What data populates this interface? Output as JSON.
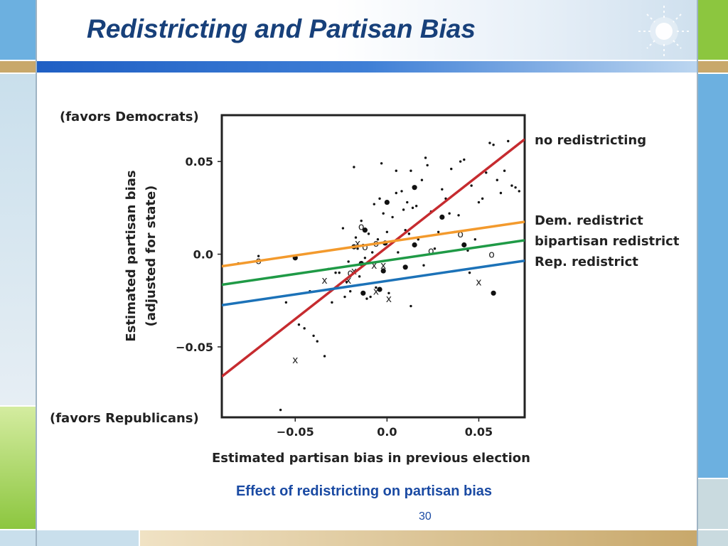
{
  "slide": {
    "title": "Redistricting and Partisan Bias",
    "caption": "Effect of redistricting on partisan bias",
    "page_number": "30",
    "colors": {
      "title": "#17407a",
      "top_bar": "#1f5fc4",
      "frame_blue": "#6cb0e0",
      "frame_green": "#8cc63f",
      "frame_tan": "#c8a86b"
    },
    "decoration_icon": "sparkle-icon"
  },
  "chart_data": {
    "type": "scatter",
    "title": "",
    "xlabel": "Estimated partisan bias in previous election",
    "ylabel": "Estimated partisan bias",
    "ylabel_sub": "(adjusted for state)",
    "top_annotation": "(favors Democrats)",
    "bottom_annotation": "(favors Republicans)",
    "xlim": [
      -0.09,
      0.075
    ],
    "ylim": [
      -0.088,
      0.075
    ],
    "x_ticks": [
      -0.05,
      0.0,
      0.05
    ],
    "x_tick_labels": [
      "−0.05",
      "0.0",
      "0.05"
    ],
    "y_ticks": [
      0.05,
      0.0,
      -0.05
    ],
    "y_tick_labels": [
      "0.05",
      "0.0",
      "−0.05"
    ],
    "grid": false,
    "lines": [
      {
        "name": "no redistricting",
        "color": "#c62b2f",
        "x": [
          -0.09,
          0.075
        ],
        "y": [
          -0.066,
          0.062
        ]
      },
      {
        "name": "Dem. redistrict",
        "color": "#f39a2d",
        "x": [
          -0.09,
          0.075
        ],
        "y": [
          -0.0065,
          0.0175
        ]
      },
      {
        "name": "bipartisan redistrict",
        "color": "#1f9a46",
        "x": [
          -0.09,
          0.075
        ],
        "y": [
          -0.0165,
          0.0075
        ]
      },
      {
        "name": "Rep. redistrict",
        "color": "#1c72b8",
        "x": [
          -0.09,
          0.075
        ],
        "y": [
          -0.0275,
          -0.0035
        ]
      }
    ],
    "points_small": [
      [
        -0.081,
        -0.005
      ],
      [
        -0.07,
        -0.001
      ],
      [
        -0.055,
        -0.026
      ],
      [
        -0.048,
        -0.038
      ],
      [
        -0.045,
        -0.04
      ],
      [
        -0.04,
        -0.044
      ],
      [
        -0.038,
        -0.047
      ],
      [
        -0.03,
        -0.026
      ],
      [
        -0.026,
        -0.01
      ],
      [
        -0.024,
        0.014
      ],
      [
        -0.022,
        -0.015
      ],
      [
        -0.02,
        -0.02
      ],
      [
        -0.018,
        0.047
      ],
      [
        -0.017,
        0.009
      ],
      [
        -0.016,
        0.003
      ],
      [
        -0.015,
        -0.012
      ],
      [
        -0.014,
        0.018
      ],
      [
        -0.013,
        0.005
      ],
      [
        -0.012,
        -0.002
      ],
      [
        -0.011,
        -0.024
      ],
      [
        -0.01,
        0.011
      ],
      [
        -0.008,
        0.001
      ],
      [
        -0.007,
        0.027
      ],
      [
        -0.006,
        -0.018
      ],
      [
        -0.005,
        0.008
      ],
      [
        -0.004,
        0.03
      ],
      [
        -0.003,
        0.049
      ],
      [
        -0.002,
        0.022
      ],
      [
        0.0,
        0.012
      ],
      [
        0.001,
        -0.021
      ],
      [
        0.003,
        0.02
      ],
      [
        0.005,
        0.045
      ],
      [
        0.006,
        0.001
      ],
      [
        0.008,
        0.034
      ],
      [
        0.009,
        0.024
      ],
      [
        0.01,
        0.013
      ],
      [
        0.012,
        0.011
      ],
      [
        0.013,
        0.045
      ],
      [
        0.014,
        0.025
      ],
      [
        0.016,
        0.026
      ],
      [
        0.017,
        0.008
      ],
      [
        0.019,
        0.04
      ],
      [
        0.021,
        0.052
      ],
      [
        0.022,
        0.048
      ],
      [
        0.024,
        0.023
      ],
      [
        0.026,
        0.003
      ],
      [
        0.028,
        0.012
      ],
      [
        0.03,
        0.035
      ],
      [
        0.032,
        0.03
      ],
      [
        0.034,
        0.022
      ],
      [
        0.035,
        0.046
      ],
      [
        0.037,
        0.012
      ],
      [
        0.039,
        0.021
      ],
      [
        0.04,
        0.05
      ],
      [
        0.042,
        0.051
      ],
      [
        0.044,
        0.002
      ],
      [
        0.046,
        0.037
      ],
      [
        0.048,
        0.008
      ],
      [
        0.05,
        0.028
      ],
      [
        0.052,
        0.03
      ],
      [
        0.054,
        0.044
      ],
      [
        0.056,
        0.06
      ],
      [
        0.058,
        0.059
      ],
      [
        0.06,
        0.04
      ],
      [
        0.062,
        0.033
      ],
      [
        0.064,
        0.045
      ],
      [
        0.066,
        0.061
      ],
      [
        0.068,
        0.037
      ],
      [
        0.07,
        0.036
      ],
      [
        0.072,
        0.034
      ],
      [
        -0.032,
        -0.008
      ],
      [
        -0.028,
        -0.01
      ],
      [
        -0.02,
        -0.012
      ],
      [
        0.013,
        -0.028
      ],
      [
        0.02,
        -0.006
      ],
      [
        -0.042,
        -0.02
      ],
      [
        -0.034,
        -0.055
      ],
      [
        -0.058,
        -0.084
      ],
      [
        0.005,
        0.033
      ],
      [
        0.045,
        -0.01
      ],
      [
        -0.023,
        -0.023
      ],
      [
        -0.021,
        -0.004
      ],
      [
        0.011,
        0.028
      ],
      [
        -0.009,
        -0.023
      ]
    ],
    "points_large": [
      [
        -0.05,
        -0.002
      ],
      [
        -0.018,
        0.004
      ],
      [
        -0.014,
        -0.005
      ],
      [
        -0.013,
        -0.021
      ],
      [
        -0.012,
        0.013
      ],
      [
        -0.004,
        -0.019
      ],
      [
        -0.002,
        -0.009
      ],
      [
        -0.001,
        0.006
      ],
      [
        0.0,
        0.028
      ],
      [
        0.01,
        -0.007
      ],
      [
        0.015,
        0.036
      ],
      [
        0.015,
        0.005
      ],
      [
        0.03,
        0.02
      ],
      [
        0.042,
        0.005
      ],
      [
        0.058,
        -0.021
      ]
    ],
    "markers_o": [
      [
        -0.07,
        -0.0035
      ],
      [
        -0.014,
        0.015
      ],
      [
        -0.006,
        0.006
      ],
      [
        0.024,
        0.002
      ],
      [
        0.04,
        0.011
      ],
      [
        0.057,
        0.0
      ],
      [
        -0.02,
        -0.01
      ],
      [
        -0.012,
        0.004
      ]
    ],
    "markers_x": [
      [
        -0.05,
        -0.057
      ],
      [
        -0.034,
        -0.014
      ],
      [
        -0.021,
        -0.014
      ],
      [
        -0.016,
        0.006
      ],
      [
        -0.006,
        -0.02
      ],
      [
        0.001,
        -0.024
      ],
      [
        -0.002,
        -0.006
      ],
      [
        0.05,
        -0.015
      ],
      [
        -0.018,
        -0.009
      ],
      [
        -0.007,
        -0.006
      ]
    ]
  }
}
